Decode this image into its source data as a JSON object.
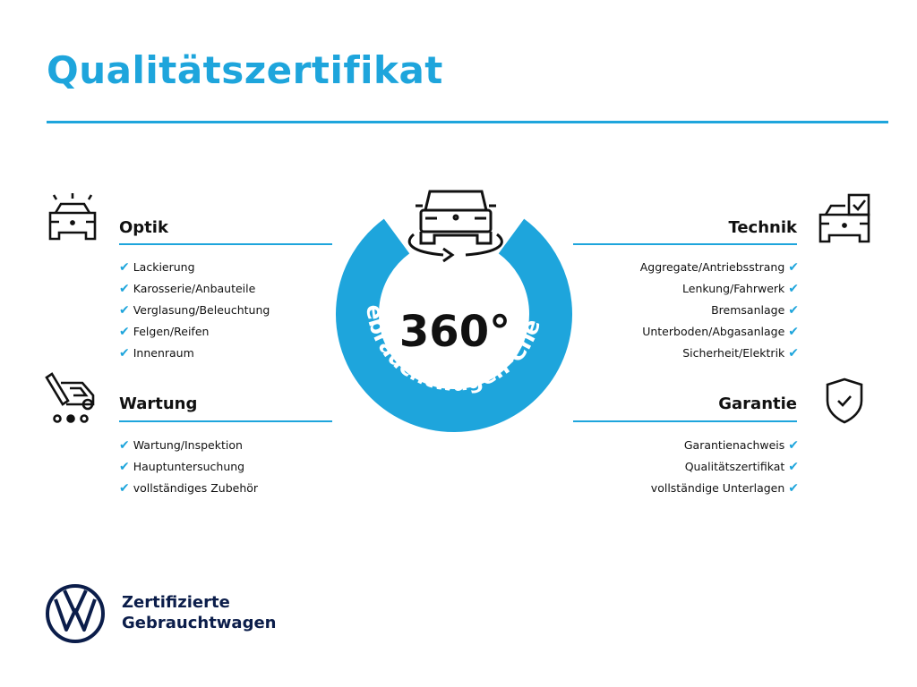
{
  "title": "Qualitätszertifikat",
  "accent_color": "#1ea5dc",
  "badge": {
    "number": "360°",
    "ring_text": "Gebrauchtwagen-Check",
    "icon": "car-rotate-icon"
  },
  "sections": {
    "optik": {
      "title": "Optik",
      "icon": "car-lights-icon",
      "items": [
        "Lackierung",
        "Karosserie/Anbauteile",
        "Verglasung/Beleuchtung",
        "Felgen/Reifen",
        "Innenraum"
      ]
    },
    "wartung": {
      "title": "Wartung",
      "icon": "service-tools-icon",
      "items": [
        "Wartung/Inspektion",
        "Hauptuntersuchung",
        "vollständiges Zubehör"
      ]
    },
    "technik": {
      "title": "Technik",
      "icon": "car-checklist-icon",
      "items": [
        "Aggregate/Antriebsstrang",
        "Lenkung/Fahrwerk",
        "Bremsanlage",
        "Unterboden/Abgasanlage",
        "Sicherheit/Elektrik"
      ]
    },
    "garantie": {
      "title": "Garantie",
      "icon": "shield-check-icon",
      "items": [
        "Garantienachweis",
        "Qualitätszertifikat",
        "vollständige Unterlagen"
      ]
    }
  },
  "check_mark": "✔",
  "brand": {
    "line1": "Zertifizierte",
    "line2": "Gebrauchtwagen",
    "logo": "VW"
  }
}
